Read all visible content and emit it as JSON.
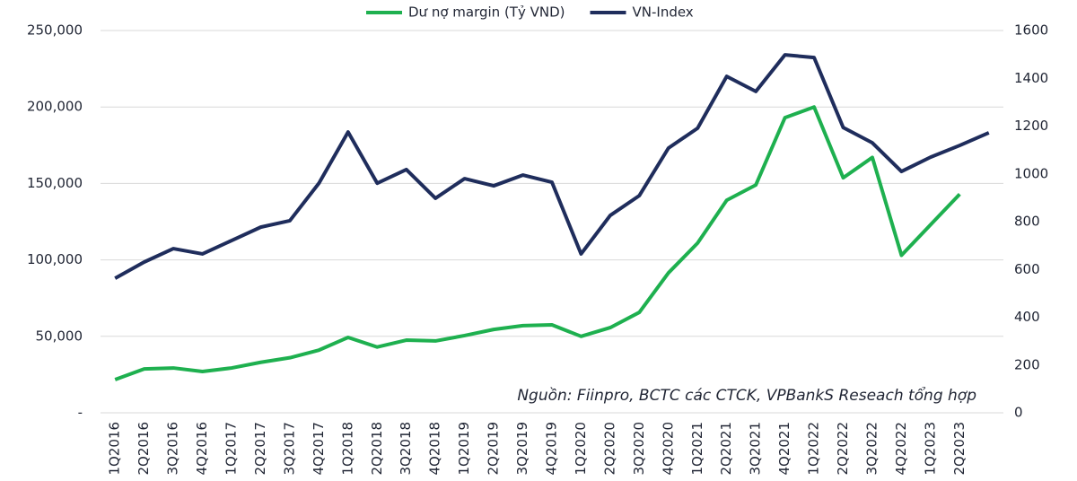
{
  "chart_data": {
    "type": "line",
    "annotation": "Nguồn: Fiinpro, BCTC các CTCK, VPBankS Reseach tổng hợp",
    "categories": [
      "1Q2016",
      "2Q2016",
      "3Q2016",
      "4Q2016",
      "1Q2017",
      "2Q2017",
      "3Q2017",
      "4Q2017",
      "1Q2018",
      "2Q2018",
      "3Q2018",
      "4Q2018",
      "1Q2019",
      "2Q2019",
      "3Q2019",
      "4Q2019",
      "1Q2020",
      "2Q2020",
      "3Q2020",
      "4Q2020",
      "1Q2021",
      "2Q2021",
      "3Q2021",
      "4Q2021",
      "1Q2022",
      "2Q2022",
      "3Q2022",
      "4Q2022",
      "1Q2023",
      "2Q2023",
      null
    ],
    "series": [
      {
        "name": "Dư nợ margin (Tỷ VND)",
        "color": "#1eb04f",
        "axis": "y",
        "values": [
          21700,
          28700,
          29300,
          27000,
          29300,
          33000,
          36000,
          41000,
          49300,
          43000,
          47500,
          47000,
          50500,
          54500,
          57000,
          57500,
          50000,
          55700,
          65700,
          91500,
          111000,
          139000,
          149000,
          193000,
          200000,
          153700,
          167000,
          103000,
          123000,
          143000,
          null
        ]
      },
      {
        "name": "VN-Index",
        "color": "#1f2d5c",
        "axis": "y2",
        "values": [
          563,
          631,
          687,
          665,
          721,
          777,
          804,
          961,
          1175,
          961,
          1018,
          898,
          980,
          950,
          995,
          965,
          665,
          826,
          909,
          1108,
          1191,
          1408,
          1345,
          1498,
          1487,
          1194,
          1130,
          1010,
          1070,
          1119,
          1172
        ]
      }
    ],
    "ylim": [
      0,
      250000
    ],
    "yticks": [
      {
        "value": 0,
        "label": "-"
      },
      {
        "value": 50000,
        "label": "50,000"
      },
      {
        "value": 100000,
        "label": "100,000"
      },
      {
        "value": 150000,
        "label": "150,000"
      },
      {
        "value": 200000,
        "label": "200,000"
      },
      {
        "value": 250000,
        "label": "250,000"
      }
    ],
    "y2lim": [
      0,
      1600
    ],
    "y2ticks": [
      0,
      200,
      400,
      600,
      800,
      1000,
      1200,
      1400,
      1600
    ],
    "grid": true,
    "legend": "top"
  }
}
